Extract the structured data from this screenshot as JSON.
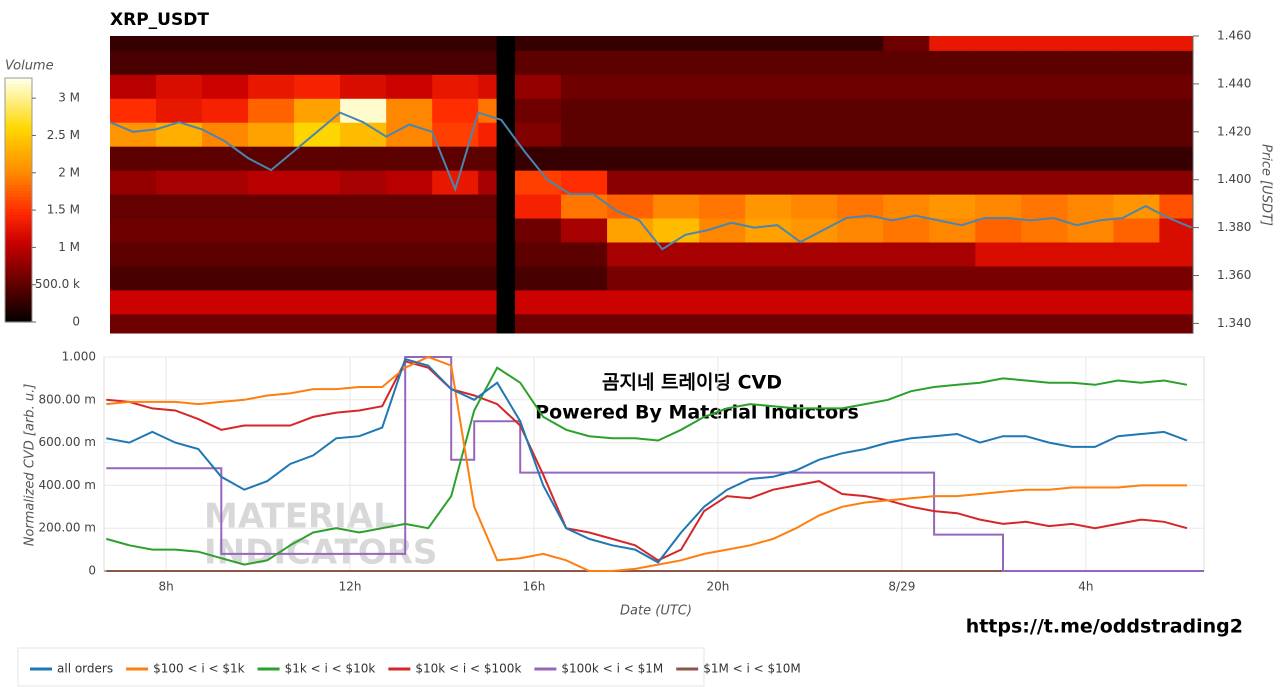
{
  "chart_data": [
    {
      "type": "heatmap",
      "title": "XRP_USDT",
      "ylabel": "Price [USDT]",
      "colormap": "hot",
      "colorbar_label": "Volume",
      "clim": [
        0,
        3270000
      ],
      "colorbar_ticks": [
        0,
        {
          "value": 500000,
          "label": "500.0 k"
        },
        {
          "value": 1000000,
          "label": "1 M"
        },
        {
          "value": 1500000,
          "label": "1.5 M"
        },
        {
          "value": 2000000,
          "label": "2 M"
        },
        {
          "value": 2500000,
          "label": "2.5 M"
        },
        {
          "value": 3000000,
          "label": "3 M"
        }
      ],
      "xlim": [
        6.8,
        30.33
      ],
      "ylim": [
        1.336,
        1.46
      ],
      "yticks": [
        {
          "value": 1.34,
          "label": "1.340"
        },
        {
          "value": 1.36,
          "label": "1.360"
        },
        {
          "value": 1.38,
          "label": "1.380"
        },
        {
          "value": 1.4,
          "label": "1.400"
        },
        {
          "value": 1.42,
          "label": "1.420"
        },
        {
          "value": 1.44,
          "label": "1.440"
        },
        {
          "value": 1.46,
          "label": "1.460"
        }
      ],
      "x_bins": [
        6.8,
        7.8,
        8.8,
        9.8,
        10.8,
        11.8,
        12.8,
        13.8,
        14.8,
        15.2,
        15.6,
        16.6,
        17.6,
        18.6,
        19.6,
        20.6,
        21.6,
        22.6,
        23.6,
        24.6,
        25.6,
        26.6,
        27.6,
        28.6,
        29.6,
        30.33
      ],
      "y_bins": [
        1.336,
        1.344,
        1.354,
        1.364,
        1.374,
        1.384,
        1.394,
        1.404,
        1.414,
        1.424,
        1.434,
        1.444,
        1.454,
        1.46
      ],
      "z": [
        [
          600000,
          600000,
          600000,
          600000,
          600000,
          600000,
          600000,
          600000,
          600000,
          0,
          600000,
          600000,
          600000,
          600000,
          600000,
          600000,
          600000,
          600000,
          600000,
          600000,
          600000,
          600000,
          600000,
          600000,
          600000
        ],
        [
          1100000,
          1100000,
          1100000,
          1100000,
          1100000,
          1100000,
          1100000,
          1100000,
          1100000,
          0,
          1100000,
          1100000,
          1100000,
          1100000,
          1100000,
          1100000,
          1100000,
          1100000,
          1100000,
          1100000,
          1100000,
          1100000,
          1100000,
          1100000,
          1100000
        ],
        [
          400000,
          400000,
          400000,
          400000,
          400000,
          400000,
          400000,
          400000,
          400000,
          0,
          400000,
          400000,
          650000,
          650000,
          650000,
          650000,
          650000,
          650000,
          650000,
          650000,
          650000,
          650000,
          650000,
          650000,
          650000
        ],
        [
          500000,
          500000,
          500000,
          500000,
          500000,
          500000,
          500000,
          500000,
          500000,
          0,
          500000,
          500000,
          900000,
          900000,
          900000,
          900000,
          900000,
          900000,
          900000,
          900000,
          1200000,
          1200000,
          1200000,
          1200000,
          1200000
        ],
        [
          600000,
          600000,
          600000,
          600000,
          600000,
          600000,
          600000,
          600000,
          600000,
          0,
          600000,
          900000,
          2200000,
          2400000,
          2000000,
          2200000,
          2100000,
          2000000,
          1900000,
          2000000,
          1800000,
          1900000,
          2000000,
          1800000,
          1200000
        ],
        [
          550000,
          550000,
          550000,
          550000,
          550000,
          550000,
          550000,
          550000,
          550000,
          0,
          1400000,
          1900000,
          1800000,
          2000000,
          1900000,
          2100000,
          2000000,
          1900000,
          2000000,
          2100000,
          2000000,
          1900000,
          2000000,
          2100000,
          1700000
        ],
        [
          800000,
          900000,
          900000,
          1000000,
          1000000,
          900000,
          1000000,
          1300000,
          900000,
          0,
          1600000,
          1500000,
          750000,
          750000,
          750000,
          750000,
          750000,
          750000,
          750000,
          750000,
          750000,
          750000,
          750000,
          750000,
          750000
        ],
        [
          500000,
          500000,
          500000,
          500000,
          500000,
          500000,
          500000,
          500000,
          500000,
          0,
          300000,
          300000,
          300000,
          300000,
          300000,
          300000,
          300000,
          300000,
          300000,
          300000,
          300000,
          300000,
          300000,
          300000,
          300000
        ],
        [
          2100000,
          2300000,
          2000000,
          2200000,
          2600000,
          2400000,
          2000000,
          1600000,
          1400000,
          0,
          700000,
          500000,
          500000,
          500000,
          500000,
          500000,
          500000,
          500000,
          500000,
          500000,
          500000,
          500000,
          500000,
          500000,
          500000
        ],
        [
          1500000,
          1300000,
          1400000,
          1800000,
          2200000,
          3200000,
          2000000,
          1500000,
          1900000,
          0,
          600000,
          500000,
          500000,
          500000,
          500000,
          500000,
          500000,
          500000,
          500000,
          500000,
          500000,
          500000,
          500000,
          500000,
          500000
        ],
        [
          1000000,
          1200000,
          1100000,
          1300000,
          1400000,
          1200000,
          1100000,
          1300000,
          1200000,
          0,
          800000,
          600000,
          600000,
          600000,
          600000,
          600000,
          600000,
          600000,
          600000,
          600000,
          600000,
          600000,
          600000,
          600000,
          600000
        ],
        [
          400000,
          400000,
          400000,
          400000,
          400000,
          400000,
          400000,
          400000,
          400000,
          0,
          500000,
          500000,
          500000,
          500000,
          500000,
          500000,
          500000,
          500000,
          500000,
          500000,
          500000,
          500000,
          500000,
          500000,
          500000
        ],
        [
          300000,
          300000,
          300000,
          300000,
          300000,
          300000,
          300000,
          300000,
          300000,
          0,
          300000,
          300000,
          300000,
          300000,
          300000,
          300000,
          300000,
          300000,
          600000,
          1300000,
          1300000,
          1300000,
          1300000,
          1300000,
          1300000
        ]
      ],
      "line": {
        "color": "#4a86b0",
        "x": [
          6.8,
          7.3,
          7.8,
          8.3,
          8.8,
          9.3,
          9.8,
          10.3,
          10.8,
          11.3,
          11.8,
          12.3,
          12.8,
          13.3,
          13.8,
          14.3,
          14.8,
          15.3,
          15.8,
          16.3,
          16.8,
          17.3,
          17.8,
          18.3,
          18.8,
          19.3,
          19.8,
          20.3,
          20.8,
          21.3,
          21.8,
          22.3,
          22.8,
          23.3,
          23.8,
          24.3,
          24.8,
          25.3,
          25.8,
          26.3,
          26.8,
          27.3,
          27.8,
          28.3,
          28.8,
          29.3,
          29.8,
          30.3
        ],
        "values": [
          1.424,
          1.42,
          1.421,
          1.424,
          1.421,
          1.416,
          1.409,
          1.404,
          1.412,
          1.42,
          1.428,
          1.424,
          1.418,
          1.423,
          1.42,
          1.396,
          1.428,
          1.425,
          1.412,
          1.4,
          1.394,
          1.394,
          1.387,
          1.383,
          1.371,
          1.377,
          1.379,
          1.382,
          1.38,
          1.381,
          1.374,
          1.379,
          1.384,
          1.385,
          1.383,
          1.385,
          1.383,
          1.381,
          1.384,
          1.384,
          1.383,
          1.384,
          1.381,
          1.383,
          1.384,
          1.389,
          1.384,
          1.38
        ]
      }
    },
    {
      "type": "line",
      "xlabel": "Date (UTC)",
      "ylabel": "Normalized CVD [arb. u.]",
      "grid": true,
      "annotations": [
        "곰지네 트레이딩 CVD",
        "Powered By Material Indictors"
      ],
      "watermark": [
        "MATERIAL",
        "INDICATORS"
      ],
      "link": "https://t.me/oddstrading2",
      "xlim": [
        6.65,
        30.57
      ],
      "ylim": [
        0,
        1
      ],
      "xticks": [
        {
          "value": 8,
          "label": "8h"
        },
        {
          "value": 12,
          "label": "12h"
        },
        {
          "value": 16,
          "label": "16h"
        },
        {
          "value": 20,
          "label": "20h"
        },
        {
          "value": 24,
          "label": "8/29"
        },
        {
          "value": 28,
          "label": "4h"
        }
      ],
      "yticks": [
        0,
        {
          "value": 0.2,
          "label": "200.00 m"
        },
        {
          "value": 0.4,
          "label": "400.00 m"
        },
        {
          "value": 0.6,
          "label": "600.00 m"
        },
        {
          "value": 0.8,
          "label": "800.00 m"
        },
        {
          "value": 1,
          "label": "1.000"
        }
      ],
      "x": [
        6.7,
        7.2,
        7.7,
        8.2,
        8.7,
        9.2,
        9.7,
        10.2,
        10.7,
        11.2,
        11.7,
        12.2,
        12.7,
        13.2,
        13.7,
        14.2,
        14.7,
        15.2,
        15.7,
        16.2,
        16.7,
        17.2,
        17.7,
        18.2,
        18.7,
        19.2,
        19.7,
        20.2,
        20.7,
        21.2,
        21.7,
        22.2,
        22.7,
        23.2,
        23.7,
        24.2,
        24.7,
        25.2,
        25.7,
        26.2,
        26.7,
        27.2,
        27.7,
        28.2,
        28.7,
        29.2,
        29.7,
        30.2
      ],
      "series": [
        {
          "name": "all orders",
          "color": "#1f77b4",
          "values": [
            0.62,
            0.6,
            0.65,
            0.6,
            0.57,
            0.44,
            0.38,
            0.42,
            0.5,
            0.54,
            0.62,
            0.63,
            0.67,
            0.99,
            0.96,
            0.85,
            0.8,
            0.88,
            0.7,
            0.4,
            0.2,
            0.15,
            0.12,
            0.1,
            0.04,
            0.18,
            0.3,
            0.38,
            0.43,
            0.44,
            0.47,
            0.52,
            0.55,
            0.57,
            0.6,
            0.62,
            0.63,
            0.64,
            0.6,
            0.63,
            0.63,
            0.6,
            0.58,
            0.58,
            0.63,
            0.64,
            0.65,
            0.61
          ]
        },
        {
          "name": "$100 < i < $1k",
          "color": "#ff7f0e",
          "values": [
            0.78,
            0.79,
            0.79,
            0.79,
            0.78,
            0.79,
            0.8,
            0.82,
            0.83,
            0.85,
            0.85,
            0.86,
            0.86,
            0.95,
            1,
            0.96,
            0.3,
            0.05,
            0.06,
            0.08,
            0.05,
            0,
            0,
            0.01,
            0.03,
            0.05,
            0.08,
            0.1,
            0.12,
            0.15,
            0.2,
            0.26,
            0.3,
            0.32,
            0.33,
            0.34,
            0.35,
            0.35,
            0.36,
            0.37,
            0.38,
            0.38,
            0.39,
            0.39,
            0.39,
            0.4,
            0.4,
            0.4
          ]
        },
        {
          "name": "$1k < i < $10k",
          "color": "#2ca02c",
          "values": [
            0.15,
            0.12,
            0.1,
            0.1,
            0.09,
            0.06,
            0.03,
            0.05,
            0.12,
            0.18,
            0.2,
            0.18,
            0.2,
            0.22,
            0.2,
            0.35,
            0.75,
            0.95,
            0.88,
            0.72,
            0.66,
            0.63,
            0.62,
            0.62,
            0.61,
            0.66,
            0.72,
            0.76,
            0.78,
            0.77,
            0.76,
            0.76,
            0.76,
            0.78,
            0.8,
            0.84,
            0.86,
            0.87,
            0.88,
            0.9,
            0.89,
            0.88,
            0.88,
            0.87,
            0.89,
            0.88,
            0.89,
            0.87
          ]
        },
        {
          "name": "$10k < i < $100k",
          "color": "#d62728",
          "values": [
            0.8,
            0.79,
            0.76,
            0.75,
            0.71,
            0.66,
            0.68,
            0.68,
            0.68,
            0.72,
            0.74,
            0.75,
            0.77,
            0.98,
            0.95,
            0.85,
            0.82,
            0.78,
            0.68,
            0.45,
            0.2,
            0.18,
            0.15,
            0.12,
            0.05,
            0.1,
            0.28,
            0.35,
            0.34,
            0.38,
            0.4,
            0.42,
            0.36,
            0.35,
            0.33,
            0.3,
            0.28,
            0.27,
            0.24,
            0.22,
            0.23,
            0.21,
            0.22,
            0.2,
            0.22,
            0.24,
            0.23,
            0.2
          ]
        },
        {
          "name": "$100k < i < $1M",
          "color": "#9467bd",
          "step": true,
          "values": [
            0.48,
            0.48,
            0.48,
            0.48,
            0.48,
            0.08,
            0.08,
            0.08,
            0.08,
            0.08,
            0.08,
            0.08,
            0.08,
            1,
            1,
            0.52,
            0.7,
            0.7,
            0.46,
            0.46,
            0.46,
            0.46,
            0.46,
            0.46,
            0.46,
            0.46,
            0.46,
            0.46,
            0.46,
            0.46,
            0.46,
            0.46,
            0.46,
            0.46,
            0.46,
            0.46,
            0.17,
            0.17,
            0.17,
            0,
            0,
            0,
            0,
            0,
            0,
            0,
            0,
            0
          ]
        },
        {
          "name": "$1M < i < $10M",
          "color": "#8c564b",
          "values": [
            0,
            0,
            0,
            0,
            0,
            0,
            0,
            0,
            0,
            0,
            0,
            0,
            0,
            0,
            0,
            0,
            0,
            0,
            0,
            0,
            0,
            0,
            0,
            0,
            0,
            0,
            0,
            0,
            0,
            0,
            0,
            0,
            0,
            0,
            0,
            0,
            0,
            0,
            0,
            0,
            0,
            0,
            0,
            0,
            0,
            0,
            0,
            0
          ]
        }
      ]
    }
  ]
}
